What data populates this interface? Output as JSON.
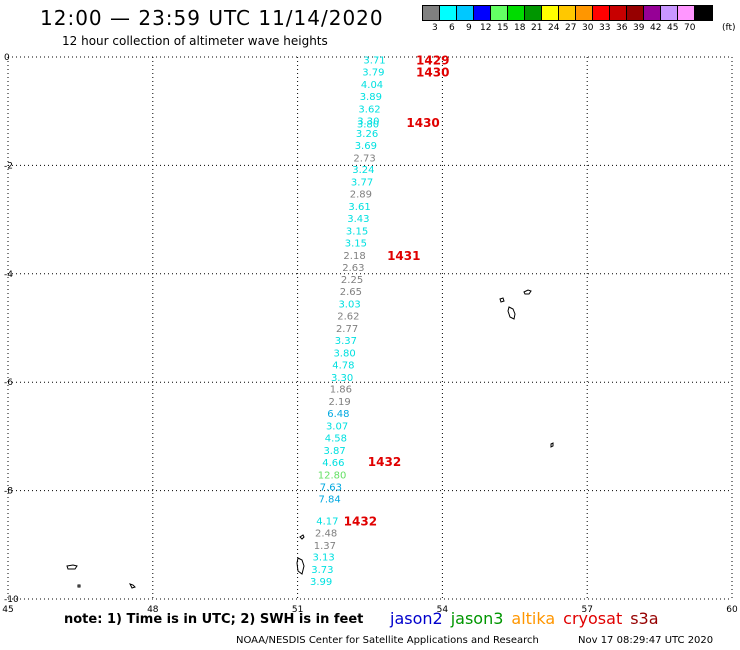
{
  "header": {
    "title": "12:00 — 23:59 UTC 11/14/2020",
    "subtitle": "12 hour collection of altimeter wave heights"
  },
  "legend": {
    "unit": "(ft)",
    "bins": [
      {
        "label": "3",
        "color": "#808080"
      },
      {
        "label": "6",
        "color": "#00ffff"
      },
      {
        "label": "9",
        "color": "#00c8ff"
      },
      {
        "label": "12",
        "color": "#0000ff"
      },
      {
        "label": "15",
        "color": "#64ff64"
      },
      {
        "label": "18",
        "color": "#00dc00"
      },
      {
        "label": "21",
        "color": "#009600"
      },
      {
        "label": "24",
        "color": "#ffff00"
      },
      {
        "label": "27",
        "color": "#ffc800"
      },
      {
        "label": "30",
        "color": "#ff9600"
      },
      {
        "label": "33",
        "color": "#ff0000"
      },
      {
        "label": "36",
        "color": "#c80000"
      },
      {
        "label": "39",
        "color": "#960000"
      },
      {
        "label": "42",
        "color": "#960096"
      },
      {
        "label": "45",
        "color": "#c896ff"
      },
      {
        "label": "70",
        "color": "#ff96ff"
      },
      {
        "label": "",
        "color": "#000000"
      }
    ]
  },
  "map": {
    "lon_range": [
      45,
      60
    ],
    "lat_range": [
      -10,
      0
    ],
    "lon_ticks": [
      "45",
      "48",
      "51",
      "54",
      "57",
      "60"
    ],
    "lat_ticks": [
      "0",
      "-2",
      "-4",
      "-6",
      "-8",
      "-10"
    ],
    "grid": "dotted",
    "track_lon": 52.6,
    "observations": [
      {
        "lat": -0.05,
        "swh": "3.71",
        "color": "#00e0e0"
      },
      {
        "lat": -0.27,
        "swh": "3.79",
        "color": "#00e0e0"
      },
      {
        "lat": -0.5,
        "swh": "4.04",
        "color": "#00e0e0"
      },
      {
        "lat": -0.72,
        "swh": "3.89",
        "color": "#00e0e0"
      },
      {
        "lat": -0.95,
        "swh": "3.62",
        "color": "#00e0e0"
      },
      {
        "lat": -1.17,
        "swh": "3.30",
        "color": "#00e0e0"
      },
      {
        "lat": -1.23,
        "swh": "3.80",
        "color": "#00e0e0"
      },
      {
        "lat": -1.4,
        "swh": "3.26",
        "color": "#00e0e0"
      },
      {
        "lat": -1.62,
        "swh": "3.69",
        "color": "#00e0e0"
      },
      {
        "lat": -1.85,
        "swh": "2.73",
        "color": "#808080"
      },
      {
        "lat": -2.07,
        "swh": "3.24",
        "color": "#00e0e0"
      },
      {
        "lat": -2.3,
        "swh": "3.77",
        "color": "#00e0e0"
      },
      {
        "lat": -2.52,
        "swh": "2.89",
        "color": "#808080"
      },
      {
        "lat": -2.75,
        "swh": "3.61",
        "color": "#00e0e0"
      },
      {
        "lat": -2.97,
        "swh": "3.43",
        "color": "#00e0e0"
      },
      {
        "lat": -3.2,
        "swh": "3.15",
        "color": "#00e0e0"
      },
      {
        "lat": -3.42,
        "swh": "3.15",
        "color": "#00e0e0"
      },
      {
        "lat": -3.65,
        "swh": "2.18",
        "color": "#808080"
      },
      {
        "lat": -3.87,
        "swh": "2.63",
        "color": "#808080"
      },
      {
        "lat": -4.1,
        "swh": "2.25",
        "color": "#808080"
      },
      {
        "lat": -4.32,
        "swh": "2.65",
        "color": "#808080"
      },
      {
        "lat": -4.55,
        "swh": "3.03",
        "color": "#00e0e0"
      },
      {
        "lat": -4.77,
        "swh": "2.62",
        "color": "#808080"
      },
      {
        "lat": -5.0,
        "swh": "2.77",
        "color": "#808080"
      },
      {
        "lat": -5.22,
        "swh": "3.37",
        "color": "#00e0e0"
      },
      {
        "lat": -5.45,
        "swh": "3.80",
        "color": "#00e0e0"
      },
      {
        "lat": -5.67,
        "swh": "4.78",
        "color": "#00e0e0"
      },
      {
        "lat": -5.9,
        "swh": "3.30",
        "color": "#00e0e0"
      },
      {
        "lat": -6.12,
        "swh": "1.86",
        "color": "#808080"
      },
      {
        "lat": -6.35,
        "swh": "2.19",
        "color": "#808080"
      },
      {
        "lat": -6.57,
        "swh": "6.48",
        "color": "#00a8e0"
      },
      {
        "lat": -6.8,
        "swh": "3.07",
        "color": "#00e0e0"
      },
      {
        "lat": -7.02,
        "swh": "4.58",
        "color": "#00e0e0"
      },
      {
        "lat": -7.25,
        "swh": "3.87",
        "color": "#00e0e0"
      },
      {
        "lat": -7.47,
        "swh": "4.66",
        "color": "#00e0e0"
      },
      {
        "lat": -7.7,
        "swh": "12.80",
        "color": "#64e064"
      },
      {
        "lat": -7.92,
        "swh": "7.63",
        "color": "#00a8e0"
      },
      {
        "lat": -8.15,
        "swh": "7.84",
        "color": "#00a8e0"
      },
      {
        "lat": -8.55,
        "swh": "4.17",
        "color": "#00e0e0"
      },
      {
        "lat": -8.77,
        "swh": "2.48",
        "color": "#808080"
      },
      {
        "lat": -9.0,
        "swh": "1.37",
        "color": "#808080"
      },
      {
        "lat": -9.22,
        "swh": "3.13",
        "color": "#00e0e0"
      },
      {
        "lat": -9.45,
        "swh": "3.73",
        "color": "#00e0e0"
      },
      {
        "lat": -9.67,
        "swh": "3.99",
        "color": "#00e0e0"
      }
    ],
    "pass_times": [
      {
        "lat": -0.05,
        "lon": 53.8,
        "text": "1429"
      },
      {
        "lat": -0.27,
        "lon": 53.8,
        "text": "1430"
      },
      {
        "lat": -1.2,
        "lon": 53.6,
        "text": "1430"
      },
      {
        "lat": -3.65,
        "lon": 53.2,
        "text": "1431"
      },
      {
        "lat": -7.45,
        "lon": 52.8,
        "text": "1432"
      },
      {
        "lat": -8.55,
        "lon": 52.3,
        "text": "1432"
      }
    ],
    "time_color": "#e00000"
  },
  "footer": {
    "note": "note: 1) Time is in UTC; 2) SWH is in feet",
    "satellites": [
      {
        "name": "jason2",
        "color": "#0000cc"
      },
      {
        "name": "jason3",
        "color": "#009600"
      },
      {
        "name": "altika",
        "color": "#ff9600"
      },
      {
        "name": "cryosat",
        "color": "#e00000"
      },
      {
        "name": "s3a",
        "color": "#960000"
      }
    ],
    "credit": "NOAA/NESDIS Center for Satellite Applications and Research",
    "timestamp": "Nov 17 08:29:47 UTC 2020"
  }
}
